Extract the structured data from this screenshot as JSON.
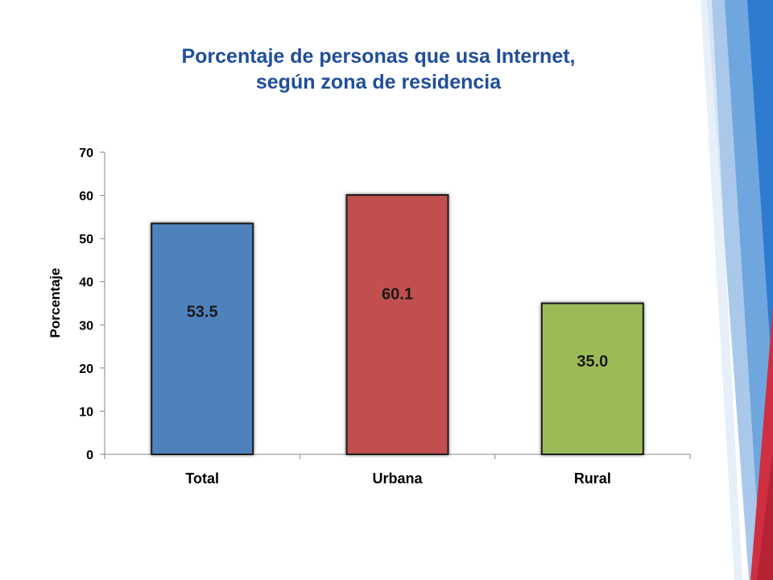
{
  "title_line1": "Porcentaje de personas que usa Internet,",
  "title_line2": "según zona de residencia",
  "chart_data": {
    "type": "bar",
    "categories": [
      "Total",
      "Urbana",
      "Rural"
    ],
    "values": [
      53.5,
      60.1,
      35.0
    ],
    "data_labels": [
      "53.5",
      "60.1",
      "35.0"
    ],
    "ylabel": "Porcentaje",
    "xlabel": "",
    "ylim": [
      0,
      70
    ],
    "yticks": [
      0,
      10,
      20,
      30,
      40,
      50,
      60,
      70
    ],
    "colors": [
      "#4f81bd",
      "#c0504d",
      "#9bbb59"
    ],
    "grid": false,
    "legend": "none"
  },
  "colors": {
    "title": "#1f4e9a",
    "accent_blue": "#2e7bd0",
    "accent_red": "#cf2f42"
  }
}
